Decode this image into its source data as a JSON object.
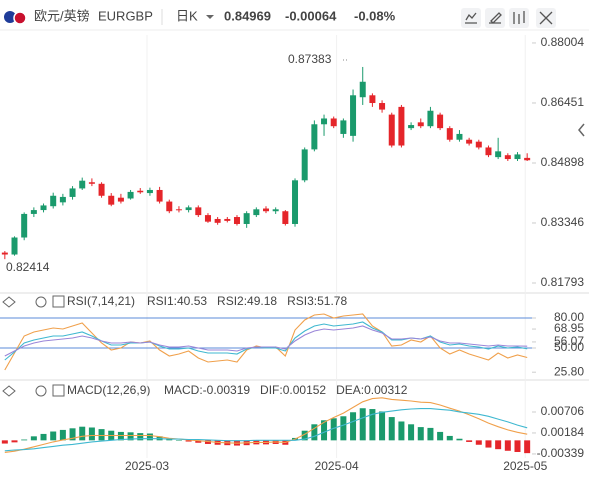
{
  "header": {
    "pair": "欧元/英镑",
    "symbol": "EURGBP",
    "period": "日K",
    "price": 0.84969,
    "change": -0.00064,
    "change_pct": "-0.08%",
    "color": "#1a9a6c"
  },
  "chart_data": [
    {
      "type": "candlestick",
      "up_color": "#1a9a6c",
      "down_color": "#e5252a",
      "xlim": [
        -0.5,
        54.5
      ],
      "ylim": [
        0.8156,
        0.8821
      ],
      "yticks": [
        0.88004,
        0.86451,
        0.84898,
        0.83346,
        0.81793
      ],
      "annotations": [
        "0.87383",
        "0.82414"
      ],
      "ohlc": [
        [
          0.8258,
          0.8262,
          0.8241,
          0.8253
        ],
        [
          0.8253,
          0.83,
          0.825,
          0.8297
        ],
        [
          0.8297,
          0.8362,
          0.829,
          0.8358
        ],
        [
          0.8358,
          0.8375,
          0.835,
          0.8368
        ],
        [
          0.8368,
          0.8385,
          0.8362,
          0.838
        ],
        [
          0.8378,
          0.8413,
          0.8372,
          0.8405
        ],
        [
          0.8388,
          0.841,
          0.838,
          0.8402
        ],
        [
          0.8402,
          0.843,
          0.8395,
          0.8424
        ],
        [
          0.8424,
          0.8452,
          0.842,
          0.8444
        ],
        [
          0.844,
          0.845,
          0.843,
          0.8436
        ],
        [
          0.8436,
          0.844,
          0.84,
          0.8405
        ],
        [
          0.8405,
          0.8412,
          0.8378,
          0.8382
        ],
        [
          0.84,
          0.841,
          0.8385,
          0.839
        ],
        [
          0.8398,
          0.842,
          0.8395,
          0.8415
        ],
        [
          0.8418,
          0.8425,
          0.841,
          0.8414
        ],
        [
          0.8412,
          0.8426,
          0.8405,
          0.842
        ],
        [
          0.842,
          0.8428,
          0.8385,
          0.839
        ],
        [
          0.839,
          0.8395,
          0.836,
          0.8365
        ],
        [
          0.837,
          0.8378,
          0.8362,
          0.8368
        ],
        [
          0.8368,
          0.838,
          0.8362,
          0.8375
        ],
        [
          0.8375,
          0.838,
          0.835,
          0.8355
        ],
        [
          0.8355,
          0.836,
          0.8335,
          0.8338
        ],
        [
          0.8345,
          0.835,
          0.833,
          0.8335
        ],
        [
          0.8345,
          0.835,
          0.8336,
          0.834
        ],
        [
          0.835,
          0.8355,
          0.8328,
          0.8332
        ],
        [
          0.8332,
          0.8365,
          0.8322,
          0.836
        ],
        [
          0.8355,
          0.8375,
          0.835,
          0.837
        ],
        [
          0.8372,
          0.8378,
          0.836,
          0.8365
        ],
        [
          0.8365,
          0.8375,
          0.8358,
          0.837
        ],
        [
          0.8365,
          0.8368,
          0.8328,
          0.8332
        ],
        [
          0.8332,
          0.845,
          0.8325,
          0.8445
        ],
        [
          0.8445,
          0.853,
          0.844,
          0.8525
        ],
        [
          0.8525,
          0.86,
          0.852,
          0.859
        ],
        [
          0.859,
          0.8615,
          0.856,
          0.8605
        ],
        [
          0.8605,
          0.861,
          0.858,
          0.8585
        ],
        [
          0.8565,
          0.8605,
          0.8555,
          0.86
        ],
        [
          0.856,
          0.868,
          0.8545,
          0.8665
        ],
        [
          0.866,
          0.87383,
          0.864,
          0.87
        ],
        [
          0.8665,
          0.867,
          0.8635,
          0.8645
        ],
        [
          0.8645,
          0.8652,
          0.862,
          0.8628
        ],
        [
          0.8615,
          0.862,
          0.853,
          0.8535
        ],
        [
          0.8635,
          0.864,
          0.853,
          0.8535
        ],
        [
          0.858,
          0.8595,
          0.8575,
          0.8588
        ],
        [
          0.8595,
          0.8605,
          0.858,
          0.8585
        ],
        [
          0.8585,
          0.8635,
          0.858,
          0.8625
        ],
        [
          0.8615,
          0.862,
          0.8575,
          0.858
        ],
        [
          0.858,
          0.8585,
          0.8545,
          0.855
        ],
        [
          0.855,
          0.8575,
          0.8545,
          0.8565
        ],
        [
          0.855,
          0.8555,
          0.8535,
          0.854
        ],
        [
          0.8545,
          0.855,
          0.8525,
          0.853
        ],
        [
          0.853,
          0.8535,
          0.8505,
          0.851
        ],
        [
          0.8505,
          0.8555,
          0.85,
          0.852
        ],
        [
          0.851,
          0.8515,
          0.8495,
          0.85
        ],
        [
          0.85,
          0.8518,
          0.8495,
          0.8512
        ],
        [
          0.8503,
          0.8515,
          0.8495,
          0.84969
        ]
      ]
    },
    {
      "type": "line",
      "title": "RSI(7,14,21)",
      "ylim": [
        20,
        85
      ],
      "level_color": "#5b8bd8",
      "yticks": [
        {
          "value": 80,
          "label": "80.00"
        },
        68.95,
        56.07,
        {
          "value": 50,
          "label": "50.00"
        },
        {
          "value": 25.8,
          "label": "25.80"
        }
      ],
      "levels": [
        80,
        50
      ],
      "series": [
        {
          "name": "RSI1:40.53",
          "color": "#f0a04b",
          "values": [
            28,
            45,
            62,
            66,
            68,
            70,
            69,
            72,
            75,
            65,
            55,
            48,
            50,
            56,
            55,
            57,
            48,
            42,
            44,
            47,
            40,
            36,
            37,
            38,
            36,
            48,
            52,
            50,
            51,
            42,
            68,
            78,
            83,
            84,
            80,
            82,
            83,
            84,
            72,
            66,
            52,
            53,
            58,
            56,
            62,
            50,
            44,
            48,
            44,
            41,
            38,
            45,
            40,
            43,
            40.53
          ]
        },
        {
          "name": "RSI2:49.18",
          "color": "#3fb8d0",
          "values": [
            38,
            46,
            55,
            58,
            60,
            62,
            62,
            64,
            66,
            62,
            57,
            53,
            53,
            55,
            55,
            56,
            52,
            49,
            49,
            50,
            47,
            45,
            45,
            45,
            44,
            49,
            51,
            50,
            50,
            47,
            60,
            67,
            72,
            74,
            72,
            73,
            74,
            76,
            70,
            66,
            58,
            58,
            60,
            59,
            62,
            56,
            53,
            54,
            52,
            51,
            49,
            52,
            50,
            51,
            49.18
          ]
        },
        {
          "name": "RSI3:51.78",
          "color": "#9a86d8",
          "values": [
            42,
            47,
            52,
            55,
            57,
            58,
            59,
            60,
            62,
            60,
            57,
            55,
            55,
            56,
            55,
            56,
            53,
            51,
            51,
            52,
            50,
            48,
            48,
            48,
            47,
            50,
            51,
            51,
            51,
            49,
            57,
            63,
            67,
            69,
            68,
            69,
            70,
            72,
            68,
            65,
            59,
            59,
            60,
            59,
            61,
            57,
            55,
            55,
            54,
            53,
            52,
            53,
            52,
            52,
            51.78
          ]
        }
      ]
    },
    {
      "type": "macd",
      "title": "MACD(12,26,9)",
      "ylim": [
        -0.0044,
        0.0113
      ],
      "yticks": [
        0.00706,
        0.00184,
        -0.00339
      ],
      "xticks": [
        {
          "value": 14.7,
          "label": "2025-03"
        },
        {
          "value": 34.3,
          "label": "2025-04"
        },
        {
          "value": 53.8,
          "label": "2025-05"
        }
      ],
      "up_color": "#1a9a6c",
      "down_color": "#e5252a",
      "series": [
        {
          "name": "MACD:-0.00319",
          "color": "#9a6fd8",
          "kind": "bar",
          "values": [
            -0.0008,
            -0.0005,
            0.0002,
            0.001,
            0.0016,
            0.0022,
            0.0026,
            0.003,
            0.0034,
            0.0032,
            0.0028,
            0.0024,
            0.0021,
            0.002,
            0.0018,
            0.0017,
            0.001,
            0.0004,
            0.0,
            -0.0003,
            -0.0006,
            -0.0009,
            -0.0011,
            -0.0012,
            -0.0013,
            -0.0012,
            -0.001,
            -0.001,
            -0.0009,
            -0.0011,
            0.0006,
            0.0024,
            0.004,
            0.005,
            0.0055,
            0.006,
            0.007,
            0.008,
            0.0078,
            0.0072,
            0.0058,
            0.0047,
            0.004,
            0.0033,
            0.0031,
            0.0021,
            0.0011,
            0.0004,
            -0.0004,
            -0.0011,
            -0.0018,
            -0.0022,
            -0.0026,
            -0.0029,
            -0.00319
          ]
        },
        {
          "name": "DIF:0.00152",
          "color": "#f0a04b",
          "kind": "line",
          "values": [
            -0.003,
            -0.0027,
            -0.0022,
            -0.0016,
            -0.001,
            -0.0004,
            0.0001,
            0.0005,
            0.001,
            0.0012,
            0.0012,
            0.0012,
            0.0012,
            0.0012,
            0.0012,
            0.0012,
            0.0009,
            0.0005,
            0.0003,
            0.0001,
            -0.0001,
            -0.0003,
            -0.0005,
            -0.0006,
            -0.0007,
            -0.0006,
            -0.0005,
            -0.0005,
            -0.0004,
            -0.0005,
            0.0003,
            0.0015,
            0.003,
            0.0045,
            0.0057,
            0.0068,
            0.0082,
            0.0096,
            0.0104,
            0.0106,
            0.0102,
            0.01,
            0.0098,
            0.0095,
            0.0094,
            0.0088,
            0.008,
            0.0073,
            0.0064,
            0.0054,
            0.0043,
            0.0034,
            0.0026,
            0.002,
            0.00152
          ]
        },
        {
          "name": "DEA:0.00312",
          "color": "#3fb8d0",
          "kind": "line",
          "values": [
            -0.0026,
            -0.0024,
            -0.0023,
            -0.0021,
            -0.0018,
            -0.0015,
            -0.0012,
            -0.001,
            -0.0007,
            -0.0004,
            -0.0002,
            0,
            0.0002,
            0.0003,
            0.0004,
            0.0004,
            0.0004,
            0.0003,
            0.0003,
            0.0002,
            0.0002,
            0.0001,
            0,
            -0.0001,
            -0.0001,
            -0.0001,
            0,
            0,
            0,
            0,
            0,
            0.0003,
            0.001,
            0.002,
            0.003,
            0.0038,
            0.0047,
            0.0056,
            0.0065,
            0.007,
            0.0073,
            0.0076,
            0.0078,
            0.0079,
            0.0079,
            0.0077,
            0.0075,
            0.0071,
            0.0068,
            0.0065,
            0.006,
            0.0053,
            0.0046,
            0.0038,
            0.00312
          ]
        }
      ]
    }
  ]
}
